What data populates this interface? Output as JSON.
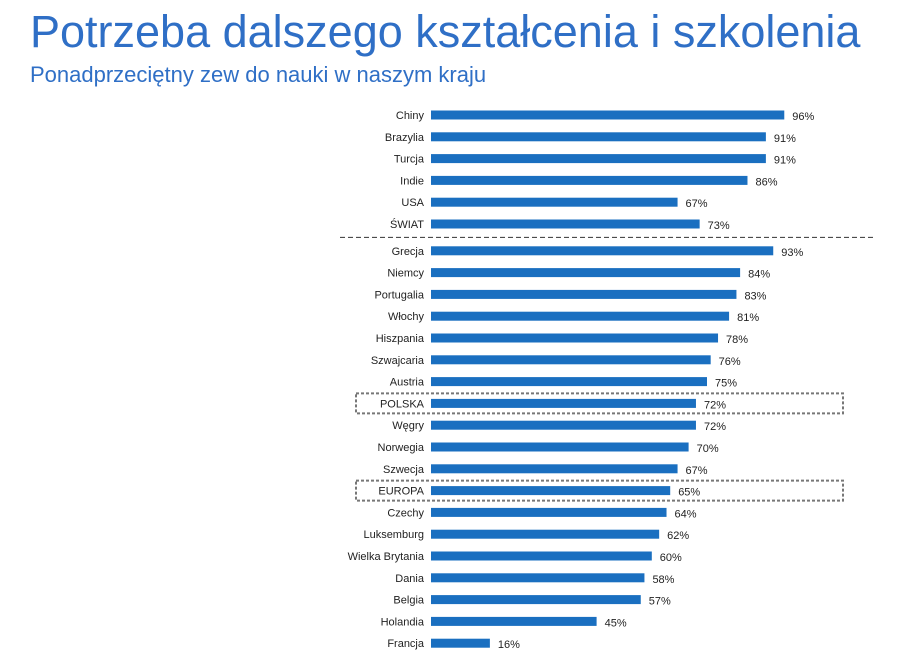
{
  "header": {
    "title": "Potrzeba dalszego kształcenia i szkolenia",
    "subtitle": "Ponadprzeciętny zew do nauki w naszym kraju"
  },
  "chart_data": {
    "type": "bar",
    "orientation": "horizontal",
    "categories": [
      "Chiny",
      "Brazylia",
      "Turcja",
      "Indie",
      "USA",
      "ŚWIAT",
      "Grecja",
      "Niemcy",
      "Portugalia",
      "Włochy",
      "Hiszpania",
      "Szwajcaria",
      "Austria",
      "POLSKA",
      "Węgry",
      "Norwegia",
      "Szwecja",
      "EUROPA",
      "Czechy",
      "Luksemburg",
      "Wielka Brytania",
      "Dania",
      "Belgia",
      "Holandia",
      "Francja"
    ],
    "values": [
      96,
      91,
      91,
      86,
      67,
      73,
      93,
      84,
      83,
      81,
      78,
      76,
      75,
      72,
      72,
      70,
      67,
      65,
      64,
      62,
      60,
      58,
      57,
      45,
      16
    ],
    "value_labels": [
      "96%",
      "91%",
      "91%",
      "86%",
      "67%",
      "73%",
      "93%",
      "84%",
      "83%",
      "81%",
      "78%",
      "76%",
      "75%",
      "72%",
      "72%",
      "70%",
      "67%",
      "65%",
      "64%",
      "62%",
      "60%",
      "58%",
      "57%",
      "45%",
      "16%"
    ],
    "highlighted": [
      "POLSKA",
      "EUROPA"
    ],
    "separator_after": "ŚWIAT",
    "xlim": [
      0,
      100
    ],
    "grid": false,
    "bar_color": "#1a6fc0"
  }
}
